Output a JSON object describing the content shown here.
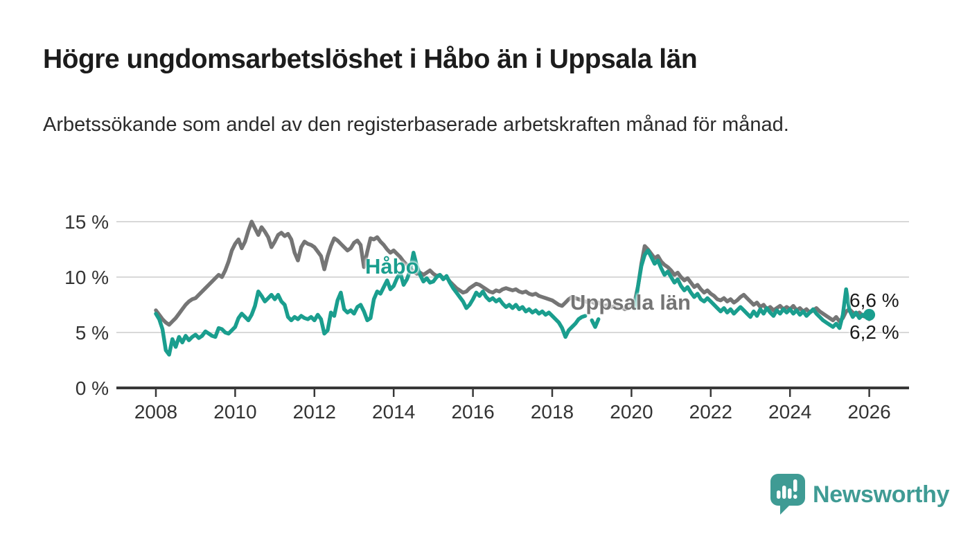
{
  "title": "Högre ungdomsarbetslöshet i Håbo än i Uppsala län",
  "subtitle": "Arbetssökande som andel av den registerbaserade arbetskraften månad för månad.",
  "logo": {
    "text": "Newsworthy",
    "color": "#3f9b94"
  },
  "colors": {
    "habo_line": "#1a9e8e",
    "uppsala_line": "#757575",
    "gridline": "#d8d8d8",
    "axis": "#383838",
    "axis_text": "#333333",
    "value_label_text": "#1a1a1a"
  },
  "chart_data": {
    "type": "line",
    "title": "Högre ungdomsarbetslöshet i Håbo än i Uppsala län",
    "subtitle": "Arbetssökande som andel av den registerbaserade arbetskraften månad för månad.",
    "unit": "%",
    "x_start_year": 2008,
    "x_step_months": 1,
    "xlim": [
      2007,
      2027
    ],
    "ylim": [
      0,
      16
    ],
    "grid": "horizontal",
    "xticks": [
      {
        "year": 2008,
        "label": "2008"
      },
      {
        "year": 2010,
        "label": "2010"
      },
      {
        "year": 2012,
        "label": "2012"
      },
      {
        "year": 2014,
        "label": "2014"
      },
      {
        "year": 2016,
        "label": "2016"
      },
      {
        "year": 2018,
        "label": "2018"
      },
      {
        "year": 2020,
        "label": "2020"
      },
      {
        "year": 2022,
        "label": "2022"
      },
      {
        "year": 2024,
        "label": "2024"
      },
      {
        "year": 2026,
        "label": "2026"
      }
    ],
    "yticks": [
      {
        "value": 0,
        "label": "0 %"
      },
      {
        "value": 5,
        "label": "5 %"
      },
      {
        "value": 10,
        "label": "10 %"
      },
      {
        "value": 15,
        "label": "15 %"
      }
    ],
    "annotations": {
      "habo_series_label": "Håbo",
      "uppsala_series_label": "Uppsala län",
      "end_value_habo": "6,6 %",
      "end_value_uppsala": "6,2 %"
    },
    "series": [
      {
        "name": "Uppsala län",
        "color": "#757575",
        "endpoint_dot": false,
        "values": [
          7.0,
          6.6,
          6.2,
          5.9,
          5.7,
          6.0,
          6.3,
          6.7,
          7.1,
          7.5,
          7.8,
          8.0,
          8.1,
          8.4,
          8.7,
          9.0,
          9.3,
          9.6,
          9.9,
          10.2,
          10.0,
          10.6,
          11.4,
          12.4,
          13.0,
          13.4,
          12.6,
          13.2,
          14.2,
          15.0,
          14.4,
          13.8,
          14.5,
          14.1,
          13.6,
          12.7,
          13.2,
          13.8,
          14.0,
          13.7,
          13.9,
          13.4,
          12.2,
          11.5,
          12.7,
          13.2,
          13.0,
          12.9,
          12.7,
          12.3,
          11.9,
          10.7,
          11.9,
          12.8,
          13.5,
          13.3,
          13.0,
          12.7,
          12.4,
          12.6,
          13.1,
          13.3,
          12.9,
          10.9,
          12.3,
          13.5,
          13.4,
          13.6,
          13.2,
          12.9,
          12.5,
          12.2,
          12.4,
          12.1,
          11.8,
          11.4,
          11.1,
          10.8,
          10.5,
          10.3,
          10.4,
          10.2,
          10.4,
          10.6,
          10.3,
          10.1,
          10.2,
          9.9,
          10.0,
          9.6,
          9.3,
          9.0,
          8.8,
          8.6,
          8.7,
          9.0,
          9.2,
          9.4,
          9.3,
          9.1,
          8.9,
          8.7,
          8.6,
          8.8,
          8.7,
          8.9,
          9.0,
          8.9,
          8.8,
          8.9,
          8.7,
          8.6,
          8.7,
          8.5,
          8.4,
          8.5,
          8.3,
          8.2,
          8.1,
          8.0,
          7.9,
          7.7,
          7.5,
          7.4,
          7.7,
          8.0,
          8.2,
          8.1,
          8.0,
          7.9,
          7.8,
          7.7,
          7.8,
          7.6,
          7.7,
          7.5,
          7.4,
          7.5,
          7.3,
          7.4,
          7.2,
          7.3,
          7.1,
          7.2,
          7.4,
          7.8,
          9.2,
          11.2,
          12.8,
          12.5,
          12.1,
          11.7,
          11.9,
          11.4,
          11.1,
          10.9,
          10.6,
          10.2,
          10.4,
          10.0,
          9.7,
          9.9,
          9.5,
          9.1,
          9.3,
          8.9,
          8.6,
          8.8,
          8.5,
          8.3,
          8.0,
          7.9,
          8.1,
          7.8,
          8.0,
          7.7,
          7.9,
          8.2,
          8.4,
          8.1,
          7.8,
          7.5,
          7.7,
          7.3,
          7.5,
          7.1,
          7.3,
          7.0,
          7.2,
          7.4,
          7.1,
          7.3,
          7.1,
          7.4,
          7.0,
          7.2,
          6.9,
          7.1,
          6.8,
          7.0,
          7.2,
          6.9,
          6.7,
          6.5,
          6.3,
          6.1,
          6.4,
          6.0,
          6.3,
          6.9,
          7.1,
          6.8,
          6.6,
          6.8,
          6.5,
          6.4,
          6.2
        ]
      },
      {
        "name": "Håbo",
        "color": "#1a9e8e",
        "endpoint_dot": true,
        "values": [
          6.7,
          6.2,
          5.3,
          3.4,
          3.0,
          4.4,
          3.7,
          4.6,
          4.1,
          4.7,
          4.3,
          4.6,
          4.8,
          4.5,
          4.7,
          5.1,
          4.9,
          4.7,
          4.6,
          5.4,
          5.3,
          5.0,
          4.9,
          5.2,
          5.5,
          6.3,
          6.7,
          6.4,
          6.1,
          6.6,
          7.4,
          8.7,
          8.3,
          7.8,
          8.1,
          8.4,
          8.0,
          8.4,
          7.8,
          7.5,
          6.4,
          6.1,
          6.4,
          6.2,
          6.5,
          6.3,
          6.2,
          6.4,
          6.1,
          6.6,
          6.2,
          4.9,
          5.2,
          6.8,
          6.5,
          7.9,
          8.6,
          7.1,
          6.8,
          7.0,
          6.7,
          7.3,
          7.5,
          6.9,
          6.1,
          6.3,
          8.0,
          8.7,
          8.5,
          9.1,
          9.7,
          8.9,
          9.2,
          9.9,
          10.4,
          9.3,
          9.8,
          10.6,
          12.2,
          11.0,
          10.2,
          9.6,
          9.9,
          9.5,
          9.6,
          10.0,
          10.2,
          9.8,
          10.1,
          9.5,
          9.0,
          8.6,
          8.2,
          7.8,
          7.2,
          7.5,
          8.0,
          8.6,
          8.3,
          8.7,
          8.2,
          7.9,
          8.1,
          7.8,
          8.0,
          7.6,
          7.3,
          7.5,
          7.2,
          7.5,
          7.1,
          7.3,
          6.9,
          7.1,
          6.8,
          7.0,
          6.7,
          6.9,
          6.6,
          6.8,
          6.5,
          6.2,
          5.9,
          5.4,
          4.6,
          5.2,
          5.5,
          5.8,
          6.2,
          6.4,
          6.5,
          null,
          6.1,
          5.5,
          6.2,
          null,
          null,
          null,
          null,
          null,
          null,
          null,
          null,
          null,
          null,
          7.2,
          9.2,
          11.0,
          12.0,
          12.4,
          11.8,
          11.2,
          11.5,
          10.8,
          10.2,
          10.5,
          10.0,
          9.5,
          9.8,
          9.2,
          8.8,
          9.1,
          8.6,
          8.2,
          8.5,
          8.0,
          7.8,
          8.1,
          7.8,
          7.5,
          7.2,
          6.9,
          7.2,
          6.8,
          7.1,
          6.7,
          7.0,
          7.3,
          7.0,
          6.7,
          6.4,
          6.9,
          6.5,
          7.1,
          6.7,
          7.2,
          6.8,
          6.5,
          7.0,
          6.7,
          7.1,
          6.8,
          7.1,
          6.7,
          7.0,
          6.6,
          6.9,
          6.5,
          6.8,
          7.1,
          6.7,
          6.4,
          6.1,
          5.9,
          5.7,
          5.5,
          5.8,
          5.4,
          6.6,
          8.9,
          7.0,
          6.4,
          6.8,
          6.3,
          6.6,
          6.4,
          6.6
        ]
      }
    ]
  }
}
